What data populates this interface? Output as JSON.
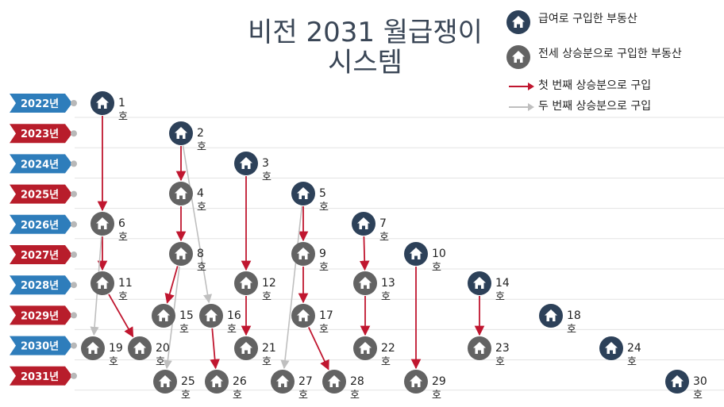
{
  "title": {
    "line1": "비전 2031 월급쟁이",
    "line2": "시스템"
  },
  "legend": {
    "salary": "급여로 구입한 부동산",
    "deposit": "전세 상승분으로 구입한 부동산",
    "first_arrow": "첫 번째 상승분으로 구입",
    "second_arrow": "두 번째 상승분으로 구입"
  },
  "colors": {
    "salary_node": "#2d4159",
    "deposit_node": "#636363",
    "first_arrow": "#c0162f",
    "second_arrow": "#bfbfbf",
    "year_blue": "#2e7dbb",
    "year_red": "#b81d2b",
    "gridline": "#e3e3e3"
  },
  "years": [
    {
      "label": "2022년",
      "color": "blue"
    },
    {
      "label": "2023년",
      "color": "red"
    },
    {
      "label": "2024년",
      "color": "blue"
    },
    {
      "label": "2025년",
      "color": "red"
    },
    {
      "label": "2026년",
      "color": "blue"
    },
    {
      "label": "2027년",
      "color": "red"
    },
    {
      "label": "2028년",
      "color": "blue"
    },
    {
      "label": "2029년",
      "color": "red"
    },
    {
      "label": "2030년",
      "color": "blue"
    },
    {
      "label": "2031년",
      "color": "red"
    }
  ],
  "unit_suffix": "호",
  "nodes": [
    {
      "id": 1,
      "year": 2022,
      "type": "salary"
    },
    {
      "id": 2,
      "year": 2023,
      "type": "salary"
    },
    {
      "id": 3,
      "year": 2024,
      "type": "salary"
    },
    {
      "id": 4,
      "year": 2025,
      "type": "deposit"
    },
    {
      "id": 5,
      "year": 2025,
      "type": "salary"
    },
    {
      "id": 6,
      "year": 2026,
      "type": "deposit"
    },
    {
      "id": 7,
      "year": 2026,
      "type": "salary"
    },
    {
      "id": 8,
      "year": 2027,
      "type": "deposit"
    },
    {
      "id": 9,
      "year": 2027,
      "type": "deposit"
    },
    {
      "id": 10,
      "year": 2027,
      "type": "salary"
    },
    {
      "id": 11,
      "year": 2028,
      "type": "deposit"
    },
    {
      "id": 12,
      "year": 2028,
      "type": "deposit"
    },
    {
      "id": 13,
      "year": 2028,
      "type": "deposit"
    },
    {
      "id": 14,
      "year": 2028,
      "type": "salary"
    },
    {
      "id": 15,
      "year": 2029,
      "type": "deposit"
    },
    {
      "id": 16,
      "year": 2029,
      "type": "deposit"
    },
    {
      "id": 17,
      "year": 2029,
      "type": "deposit"
    },
    {
      "id": 18,
      "year": 2029,
      "type": "salary"
    },
    {
      "id": 19,
      "year": 2030,
      "type": "deposit"
    },
    {
      "id": 20,
      "year": 2030,
      "type": "deposit"
    },
    {
      "id": 21,
      "year": 2030,
      "type": "deposit"
    },
    {
      "id": 22,
      "year": 2030,
      "type": "deposit"
    },
    {
      "id": 23,
      "year": 2030,
      "type": "deposit"
    },
    {
      "id": 24,
      "year": 2030,
      "type": "salary"
    },
    {
      "id": 25,
      "year": 2031,
      "type": "deposit"
    },
    {
      "id": 26,
      "year": 2031,
      "type": "deposit"
    },
    {
      "id": 27,
      "year": 2031,
      "type": "deposit"
    },
    {
      "id": 28,
      "year": 2031,
      "type": "deposit"
    },
    {
      "id": 29,
      "year": 2031,
      "type": "deposit"
    },
    {
      "id": 30,
      "year": 2031,
      "type": "salary"
    }
  ],
  "edges": [
    {
      "from": 1,
      "to": 6,
      "kind": "first"
    },
    {
      "from": 2,
      "to": 4,
      "kind": "first"
    },
    {
      "from": 2,
      "to": 16,
      "kind": "second"
    },
    {
      "from": 4,
      "to": 8,
      "kind": "first"
    },
    {
      "from": 3,
      "to": 12,
      "kind": "first"
    },
    {
      "from": 5,
      "to": 9,
      "kind": "first"
    },
    {
      "from": 5,
      "to": 27,
      "kind": "second"
    },
    {
      "from": 6,
      "to": 11,
      "kind": "first"
    },
    {
      "from": 6,
      "to": 19,
      "kind": "second"
    },
    {
      "from": 7,
      "to": 13,
      "kind": "first"
    },
    {
      "from": 8,
      "to": 15,
      "kind": "first"
    },
    {
      "from": 8,
      "to": 25,
      "kind": "second"
    },
    {
      "from": 9,
      "to": 17,
      "kind": "first"
    },
    {
      "from": 10,
      "to": 29,
      "kind": "first"
    },
    {
      "from": 11,
      "to": 20,
      "kind": "first"
    },
    {
      "from": 12,
      "to": 21,
      "kind": "first"
    },
    {
      "from": 13,
      "to": 22,
      "kind": "first"
    },
    {
      "from": 14,
      "to": 23,
      "kind": "first"
    },
    {
      "from": 16,
      "to": 26,
      "kind": "first"
    },
    {
      "from": 17,
      "to": 28,
      "kind": "first"
    }
  ]
}
